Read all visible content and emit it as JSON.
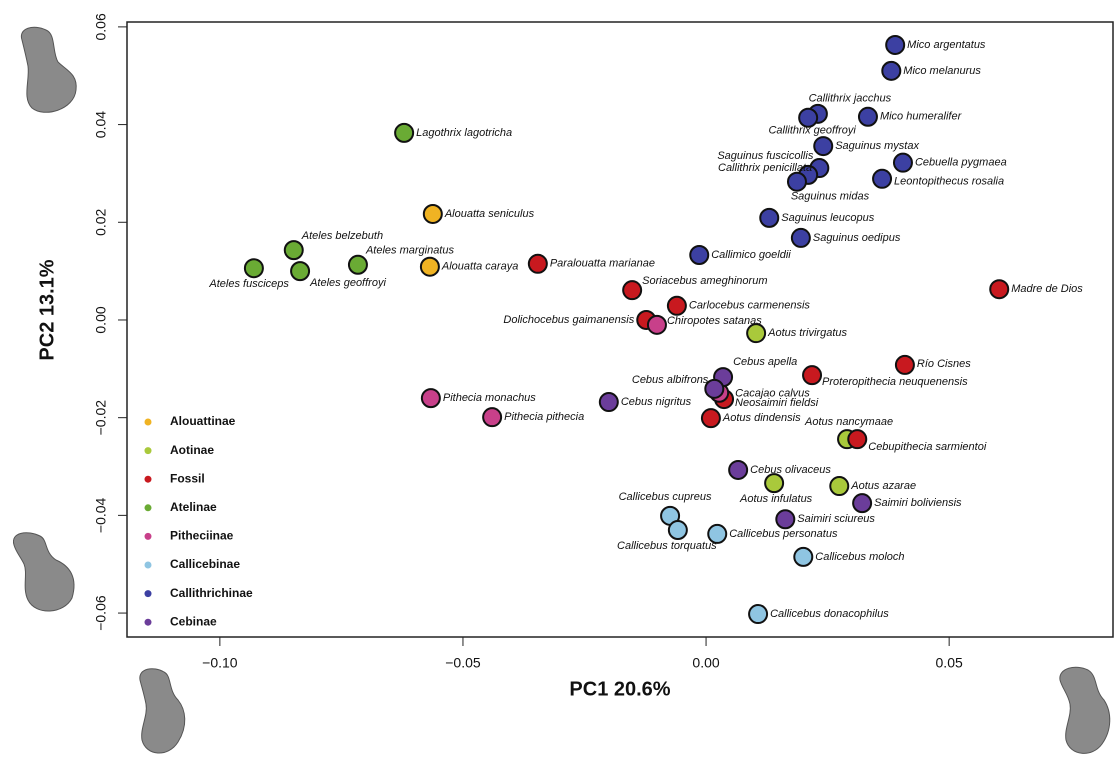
{
  "chart_data": {
    "type": "scatter",
    "xlabel": "PC1 20.6%",
    "ylabel": "PC2 13.1%",
    "xlim": [
      -0.1191,
      0.0837
    ],
    "ylim": [
      -0.0649,
      0.061
    ],
    "xticks": [
      {
        "value": -0.1,
        "label": "−0.10"
      },
      {
        "value": -0.05,
        "label": "−0.05"
      },
      {
        "value": 0,
        "label": "0.00"
      },
      {
        "value": 0.05,
        "label": "0.05"
      }
    ],
    "yticks": [
      {
        "value": -0.06,
        "label": "−0.06"
      },
      {
        "value": -0.04,
        "label": "−0.04"
      },
      {
        "value": -0.02,
        "label": "−0.02"
      },
      {
        "value": 0,
        "label": "0.00"
      },
      {
        "value": 0.02,
        "label": "0.02"
      },
      {
        "value": 0.04,
        "label": "0.04"
      },
      {
        "value": 0.06,
        "label": "0.06"
      }
    ],
    "legend": "lower left",
    "series": [
      {
        "name": "Alouattinae",
        "color": "#f0b323",
        "labels": [
          "Alouatta seniculus",
          "Alouatta caraya"
        ],
        "x": [
          -0.0562,
          -0.0568
        ],
        "y": [
          0.0217,
          0.0109
        ]
      },
      {
        "name": "Aotinae",
        "color": "#a9c93b",
        "labels": [
          "Aotus trivirgatus",
          "Aotus nancymaae",
          "Aotus azarae",
          "Aotus infulatus"
        ],
        "x": [
          0.0103,
          0.029,
          0.0274,
          0.014
        ],
        "y": [
          -0.0027,
          -0.0244,
          -0.034,
          -0.0334
        ]
      },
      {
        "name": "Fossil",
        "color": "#c8191f",
        "labels": [
          "Paralouatta marianae",
          "Soriacebus ameghinorum",
          "Carlocebus carmenensis",
          "Dolichocebus gaimanensis",
          "Madre de Dios",
          "Río Cisnes",
          "Proteropithecia neuquenensis",
          "Neosaimiri fieldsi",
          "Aotus dindensis",
          "Cebupithecia sarmientoi"
        ],
        "x": [
          -0.0346,
          -0.0152,
          -0.006,
          -0.0123,
          0.0603,
          0.0409,
          0.0218,
          0.0037,
          0.001,
          0.0311
        ],
        "y": [
          0.0115,
          0.0061,
          0.0029,
          0.0,
          0.0063,
          -0.0092,
          -0.0113,
          -0.0162,
          -0.0201,
          -0.0244
        ]
      },
      {
        "name": "Atelinae",
        "color": "#6aab34",
        "labels": [
          "Lagothrix lagotricha",
          "Ateles belzebuth",
          "Ateles marginatus",
          "Ateles fusciceps",
          "Ateles geoffroyi"
        ],
        "x": [
          -0.0621,
          -0.0848,
          -0.0716,
          -0.093,
          -0.0835
        ],
        "y": [
          0.0383,
          0.0143,
          0.0113,
          0.0106,
          0.01
        ]
      },
      {
        "name": "Pitheciinae",
        "color": "#c8408a",
        "labels": [
          "Chiropotes satanas",
          "Pithecia monachus",
          "Pithecia pithecia",
          "Cacajao calvus"
        ],
        "x": [
          -0.0101,
          -0.0566,
          -0.044,
          0.0027
        ],
        "y": [
          -0.001,
          -0.016,
          -0.0199,
          -0.0149
        ]
      },
      {
        "name": "Callicebinae",
        "color": "#8fc5e2",
        "labels": [
          "Callicebus cupreus",
          "Callicebus torquatus",
          "Callicebus personatus",
          "Callicebus moloch",
          "Callicebus donacophilus"
        ],
        "x": [
          -0.0074,
          -0.0058,
          0.0023,
          0.02,
          0.0107
        ],
        "y": [
          -0.0401,
          -0.043,
          -0.0438,
          -0.0485,
          -0.0602
        ]
      },
      {
        "name": "Callithrichinae",
        "color": "#3c40a2",
        "labels": [
          "Mico argentatus",
          "Mico melanurus",
          "Callithrix jacchus",
          "Callithrix geoffroyi",
          "Mico humeralifer",
          "Saguinus mystax",
          "Cebuella pygmaea",
          "Saguinus fuscicollis",
          "Callithrix penicillata",
          "Saguinus midas",
          "Leontopithecus rosalia",
          "Saguinus leucopus",
          "Saguinus oedipus",
          "Callimico goeldii"
        ],
        "x": [
          0.0389,
          0.0381,
          0.023,
          0.021,
          0.0333,
          0.0241,
          0.0405,
          0.0233,
          0.021,
          0.0187,
          0.0362,
          0.013,
          0.0195,
          -0.0014
        ],
        "y": [
          0.0563,
          0.051,
          0.0422,
          0.0414,
          0.0416,
          0.0356,
          0.0322,
          0.0311,
          0.0297,
          0.0283,
          0.0289,
          0.0209,
          0.0168,
          0.0133
        ]
      },
      {
        "name": "Cebinae",
        "color": "#6b3d9a",
        "labels": [
          "Cebus apella",
          "Cebus albifrons",
          "Cebus nigritus",
          "Cebus olivaceus",
          "Saimiri sciureus",
          "Saimiri boliviensis"
        ],
        "x": [
          0.0035,
          0.0017,
          -0.02,
          0.0066,
          0.0163,
          0.0321
        ],
        "y": [
          -0.0117,
          -0.0141,
          -0.0168,
          -0.0307,
          -0.0408,
          -0.0375
        ]
      }
    ]
  }
}
